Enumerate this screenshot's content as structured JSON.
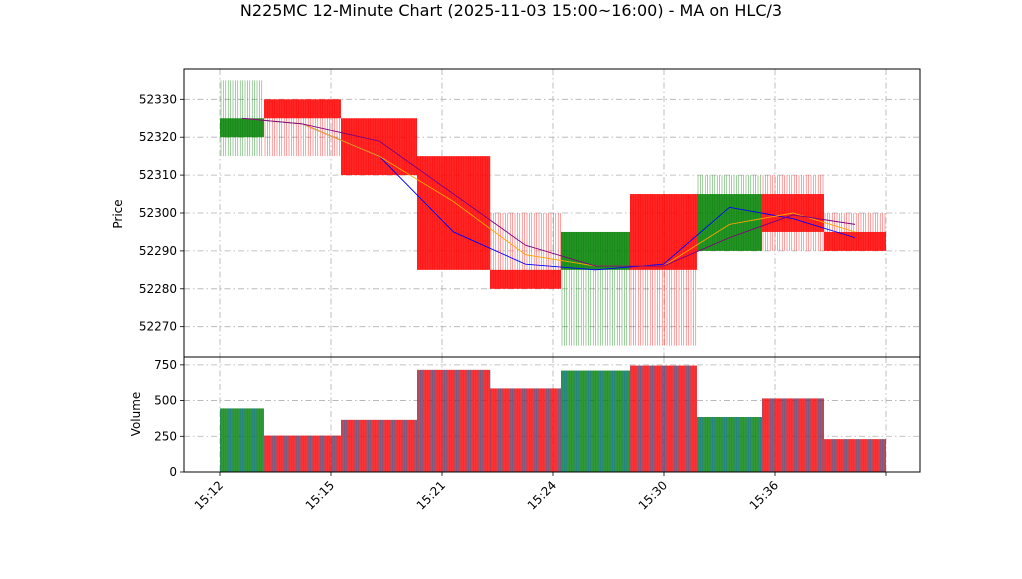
{
  "chart_data": {
    "type": "candlestick",
    "title": "N225MC 12-Minute Chart (2025-11-03 15:00~16:00) - MA on HLC/3",
    "price_panel": {
      "ylabel": "Price",
      "ylim": [
        52262,
        52338
      ],
      "yticks": [
        52270,
        52280,
        52290,
        52300,
        52310,
        52320,
        52330
      ],
      "grid": true
    },
    "volume_panel": {
      "ylabel": "Volume",
      "ylim": [
        0,
        805
      ],
      "yticks": [
        0,
        250,
        500,
        750
      ],
      "grid": true
    },
    "x_tick_labels": [
      "15:12",
      "15:15",
      "15:21",
      "15:24",
      "15:30",
      "15:36",
      ""
    ],
    "candles": [
      {
        "open": 52320,
        "high": 52335,
        "low": 52315,
        "close": 52325,
        "volume": 445,
        "direction": "up"
      },
      {
        "open": 52330,
        "high": 52330,
        "low": 52315,
        "close": 52325,
        "volume": 255,
        "direction": "down"
      },
      {
        "open": 52325,
        "high": 52325,
        "low": 52310,
        "close": 52310,
        "volume": 365,
        "direction": "down"
      },
      {
        "open": 52315,
        "high": 52315,
        "low": 52285,
        "close": 52285,
        "volume": 715,
        "direction": "down"
      },
      {
        "open": 52285,
        "high": 52300,
        "low": 52280,
        "close": 52280,
        "volume": 585,
        "direction": "down"
      },
      {
        "open": 52285,
        "high": 52295,
        "low": 52265,
        "close": 52295,
        "volume": 710,
        "direction": "up"
      },
      {
        "open": 52305,
        "high": 52305,
        "low": 52265,
        "close": 52285,
        "volume": 745,
        "direction": "down"
      },
      {
        "open": 52290,
        "high": 52310,
        "low": 52290,
        "close": 52305,
        "volume": 385,
        "direction": "up"
      },
      {
        "open": 52305,
        "high": 52310,
        "low": 52290,
        "close": 52295,
        "volume": 515,
        "direction": "down"
      },
      {
        "open": 52295,
        "high": 52300,
        "low": 52290,
        "close": 52290,
        "volume": 230,
        "direction": "down"
      }
    ],
    "moving_averages": [
      {
        "color": "#0000ff",
        "values": [
          52325,
          52323.5,
          52315,
          52295,
          52286.5,
          52285,
          52286.5,
          52301.5,
          52298.5,
          52293.5
        ]
      },
      {
        "color": "#ffa500",
        "values": [
          52325,
          52323.5,
          52315,
          52303,
          52289,
          52286,
          52286,
          52297,
          52300,
          52295
        ]
      },
      {
        "color": "#800080",
        "values": [
          52325,
          52323.5,
          52319,
          52305,
          52291.5,
          52286,
          52286,
          52293.5,
          52299.5,
          52297
        ]
      }
    ],
    "colors": {
      "up": "#008000",
      "down": "#ff0000",
      "volume_edge": "#1f77b4"
    }
  }
}
